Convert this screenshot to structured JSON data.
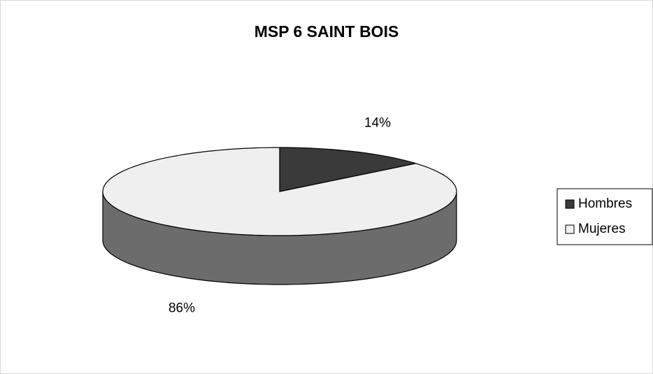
{
  "chart_data": {
    "type": "pie",
    "title": "MSP 6  SAINT BOIS",
    "categories": [
      "Hombres",
      "Mujeres"
    ],
    "values": [
      14,
      86
    ],
    "value_labels": [
      "14%",
      "86%"
    ],
    "colors": [
      "#3a3a3a",
      "#efefef"
    ],
    "legend": "right"
  }
}
